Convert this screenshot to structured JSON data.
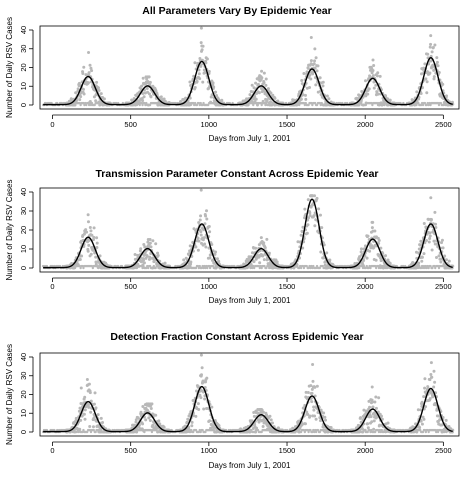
{
  "figure": {
    "background": "#ffffff"
  },
  "chart_data": [
    {
      "type": "scatter",
      "title": "All Parameters Vary By Epidemic Year",
      "xlabel": "Days from July 1, 2001",
      "ylabel": "Number of Daily RSV Cases",
      "xlim": [
        -80,
        2600
      ],
      "ylim": [
        0,
        40
      ],
      "xticks": [
        0,
        500,
        1000,
        1500,
        2000,
        2500
      ],
      "yticks": [
        0,
        10,
        20,
        30,
        40
      ],
      "point_color": "#b8b8b8",
      "line_color": "#000000",
      "peaks": [
        {
          "day": 228,
          "fit_peak": 15,
          "obs_max": 28
        },
        {
          "day": 608,
          "fit_peak": 10,
          "obs_max": 15
        },
        {
          "day": 955,
          "fit_peak": 23,
          "obs_max": 41
        },
        {
          "day": 1335,
          "fit_peak": 10,
          "obs_max": 18
        },
        {
          "day": 1660,
          "fit_peak": 19,
          "obs_max": 36
        },
        {
          "day": 2048,
          "fit_peak": 14,
          "obs_max": 24
        },
        {
          "day": 2420,
          "fit_peak": 25,
          "obs_max": 37
        }
      ]
    },
    {
      "type": "scatter",
      "title": "Transmission Parameter Constant Across Epidemic Year",
      "xlabel": "Days from July 1, 2001",
      "ylabel": "Number of Daily RSV Cases",
      "xlim": [
        -80,
        2600
      ],
      "ylim": [
        0,
        40
      ],
      "xticks": [
        0,
        500,
        1000,
        1500,
        2000,
        2500
      ],
      "yticks": [
        0,
        10,
        20,
        30,
        40
      ],
      "point_color": "#b8b8b8",
      "line_color": "#000000",
      "peaks": [
        {
          "day": 228,
          "fit_peak": 16,
          "obs_max": 28
        },
        {
          "day": 608,
          "fit_peak": 10,
          "obs_max": 15
        },
        {
          "day": 955,
          "fit_peak": 23,
          "obs_max": 41
        },
        {
          "day": 1335,
          "fit_peak": 10,
          "obs_max": 16
        },
        {
          "day": 1660,
          "fit_peak": 36,
          "obs_max": 38
        },
        {
          "day": 2048,
          "fit_peak": 15,
          "obs_max": 24
        },
        {
          "day": 2420,
          "fit_peak": 23,
          "obs_max": 37
        }
      ]
    },
    {
      "type": "scatter",
      "title": "Detection Fraction Constant Across Epidemic Year",
      "xlabel": "Days from July 1, 2001",
      "ylabel": "Number of Daily RSV Cases",
      "xlim": [
        -80,
        2600
      ],
      "ylim": [
        0,
        40
      ],
      "xticks": [
        0,
        500,
        1000,
        1500,
        2000,
        2500
      ],
      "yticks": [
        0,
        10,
        20,
        30,
        40
      ],
      "point_color": "#b8b8b8",
      "line_color": "#000000",
      "peaks": [
        {
          "day": 228,
          "fit_peak": 16,
          "obs_max": 28
        },
        {
          "day": 608,
          "fit_peak": 10,
          "obs_max": 15
        },
        {
          "day": 955,
          "fit_peak": 24,
          "obs_max": 41
        },
        {
          "day": 1335,
          "fit_peak": 9,
          "obs_max": 12
        },
        {
          "day": 1660,
          "fit_peak": 19,
          "obs_max": 36
        },
        {
          "day": 2048,
          "fit_peak": 12,
          "obs_max": 24
        },
        {
          "day": 2420,
          "fit_peak": 23,
          "obs_max": 37
        }
      ]
    }
  ]
}
